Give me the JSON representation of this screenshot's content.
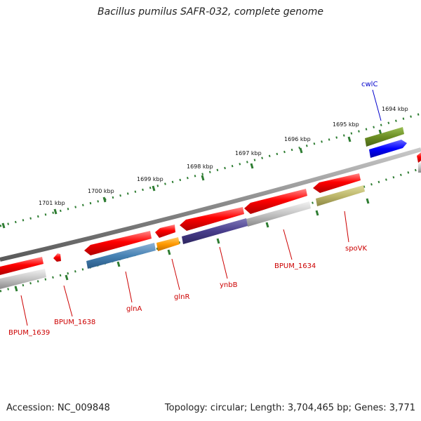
{
  "title": "Bacillus pumilus SAFR-032, complete genome",
  "footer": {
    "accession": "Accession: NC_009848",
    "summary": "Topology: circular; Length: 3,704,465 bp; Genes: 3,771"
  },
  "ruler_ticks": [
    {
      "label": "1694 kbp"
    },
    {
      "label": "1695 kbp"
    },
    {
      "label": "1696 kbp"
    },
    {
      "label": "1697 kbp"
    },
    {
      "label": "1698 kbp"
    },
    {
      "label": "1699 kbp"
    },
    {
      "label": "1700 kbp"
    },
    {
      "label": "1701 kbp"
    }
  ],
  "gene_labels": [
    {
      "text": "cwlC",
      "color": "#0000cc"
    },
    {
      "text": "spoVK",
      "color": "#cc0000"
    },
    {
      "text": "BPUM_1634",
      "color": "#cc0000"
    },
    {
      "text": "ynbB",
      "color": "#cc0000"
    },
    {
      "text": "glnR",
      "color": "#cc0000"
    },
    {
      "text": "glnA",
      "color": "#cc0000"
    },
    {
      "text": "BPUM_1638",
      "color": "#cc0000"
    },
    {
      "text": "BPUM_1639",
      "color": "#cc0000"
    }
  ],
  "colors": {
    "gene_red": "#ff0000",
    "gene_blue": "#0000ff",
    "gene_olive": "#6b8e23",
    "backbone": "#808080",
    "tick_green": "#2e7d32"
  }
}
